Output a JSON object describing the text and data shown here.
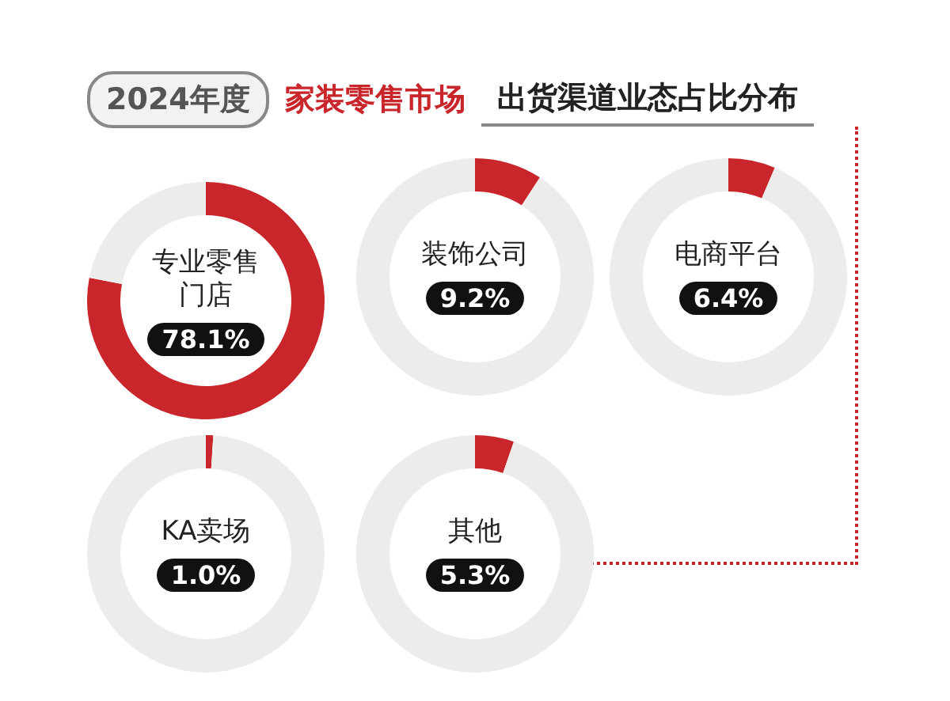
{
  "chart_data": [
    {
      "type": "donut",
      "title": "2024年度 家装零售市场 出货渠道业态占比分布",
      "categories": [
        "专业零售门店",
        null
      ],
      "values": [
        78.1,
        21.9
      ],
      "colors": [
        "#c9262c",
        "#ececec"
      ],
      "value_labels": [
        "78.1%",
        null
      ]
    },
    {
      "type": "donut",
      "categories": [
        "装饰公司",
        null
      ],
      "values": [
        9.2,
        90.8
      ],
      "colors": [
        "#c9262c",
        "#ececec"
      ],
      "value_labels": [
        "9.2%",
        null
      ]
    },
    {
      "type": "donut",
      "categories": [
        "电商平台",
        null
      ],
      "values": [
        6.4,
        93.6
      ],
      "colors": [
        "#c9262c",
        "#ececec"
      ],
      "value_labels": [
        "6.4%",
        null
      ]
    },
    {
      "type": "donut",
      "categories": [
        "KA卖场",
        null
      ],
      "values": [
        1.0,
        99.0
      ],
      "colors": [
        "#c9262c",
        "#ececec"
      ],
      "value_labels": [
        "1.0%",
        null
      ]
    },
    {
      "type": "donut",
      "categories": [
        "其他",
        null
      ],
      "values": [
        5.3,
        94.7
      ],
      "colors": [
        "#c9262c",
        "#ececec"
      ],
      "value_labels": [
        "5.3%",
        null
      ]
    }
  ]
}
